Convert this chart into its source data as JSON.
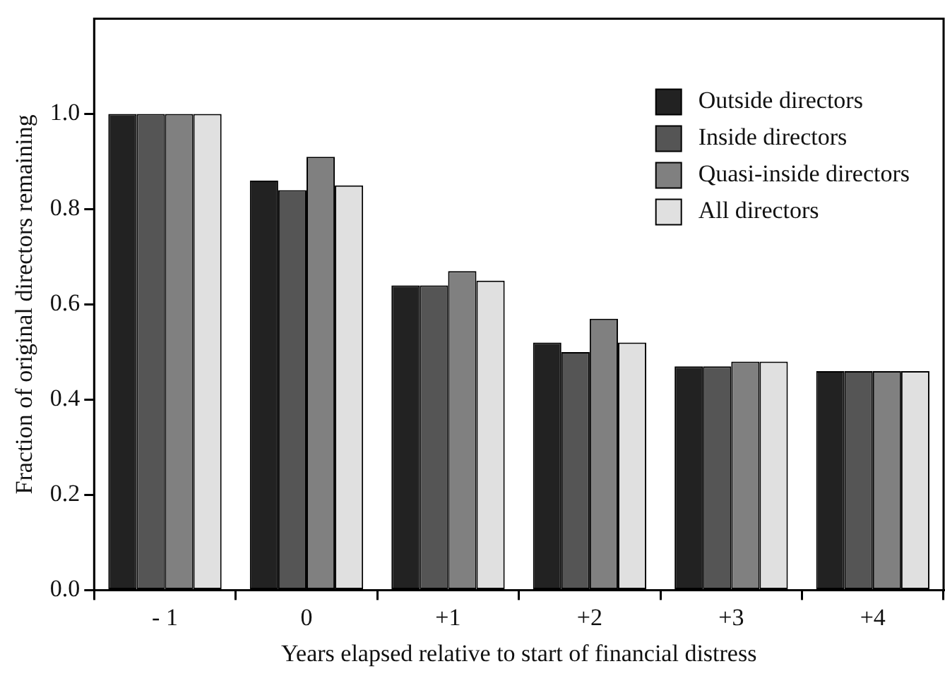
{
  "chart_data": {
    "type": "bar",
    "xlabel": "Years elapsed relative to start of financial distress",
    "ylabel": "Fraction of original directors remaining",
    "categories": [
      "- 1",
      "0",
      "+1",
      "+2",
      "+3",
      "+4"
    ],
    "series": [
      {
        "name": "Outside directors",
        "color": "#222222",
        "values": [
          1.0,
          0.86,
          0.64,
          0.52,
          0.47,
          0.46
        ]
      },
      {
        "name": "Inside directors",
        "color": "#555555",
        "values": [
          1.0,
          0.84,
          0.64,
          0.5,
          0.47,
          0.46
        ]
      },
      {
        "name": "Quasi-inside directors",
        "color": "#808080",
        "values": [
          1.0,
          0.91,
          0.67,
          0.57,
          0.48,
          0.46
        ]
      },
      {
        "name": "All directors",
        "color": "#e0e0e0",
        "values": [
          1.0,
          0.85,
          0.65,
          0.52,
          0.48,
          0.46
        ]
      }
    ],
    "ylim": [
      0,
      1.2
    ],
    "yticks": [
      {
        "value": 0,
        "label": "0.0"
      },
      {
        "value": 0.2,
        "label": "0.2"
      },
      {
        "value": 0.4,
        "label": "0.4"
      },
      {
        "value": 0.6,
        "label": "0.6"
      },
      {
        "value": 0.8,
        "label": "0.8"
      },
      {
        "value": 1.0,
        "label": "1.0"
      }
    ],
    "grid": false,
    "legend": "top right"
  }
}
